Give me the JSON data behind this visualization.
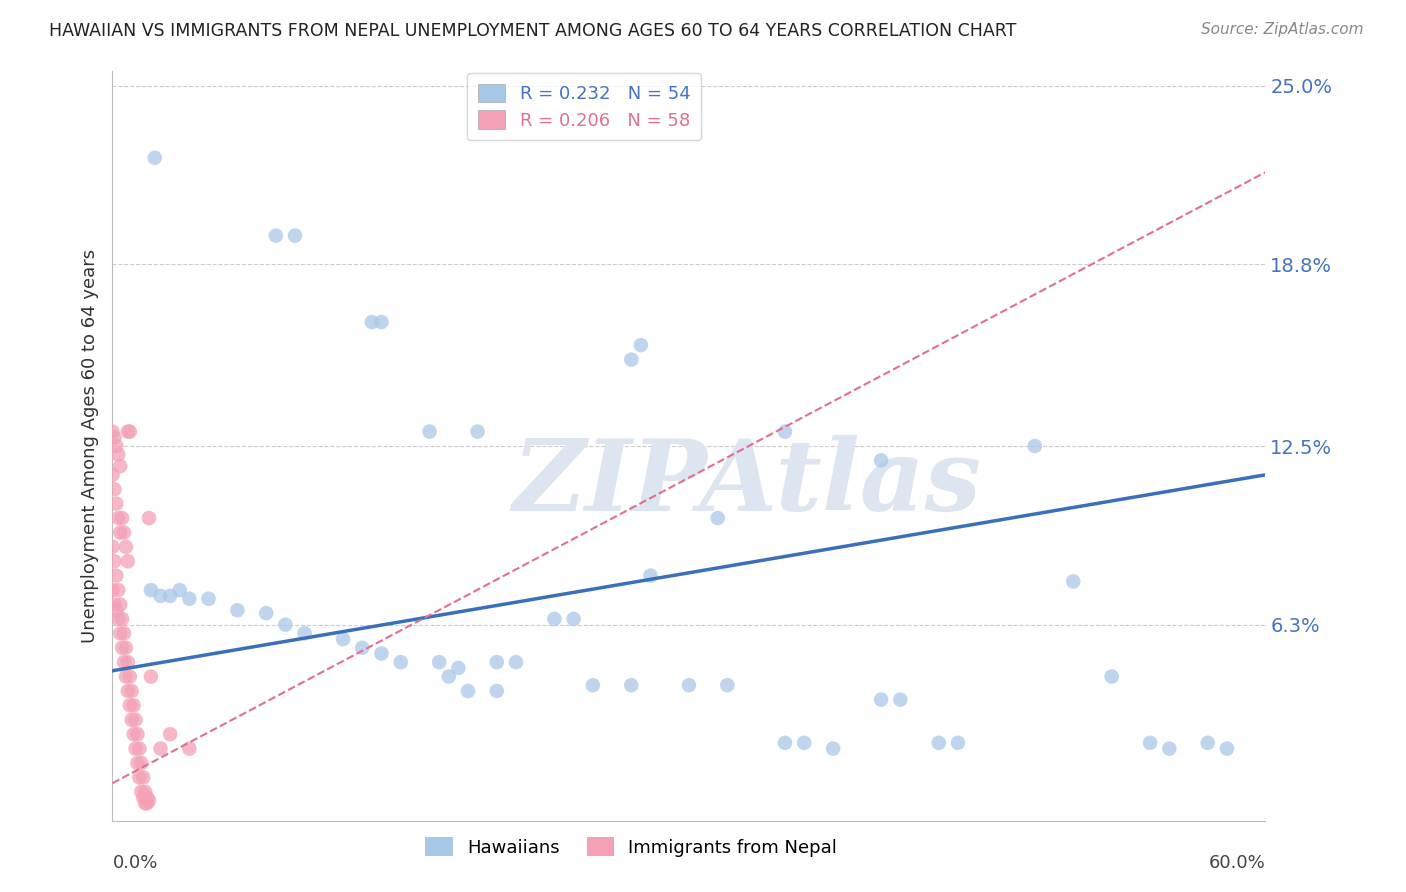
{
  "title": "HAWAIIAN VS IMMIGRANTS FROM NEPAL UNEMPLOYMENT AMONG AGES 60 TO 64 YEARS CORRELATION CHART",
  "source": "Source: ZipAtlas.com",
  "ylabel": "Unemployment Among Ages 60 to 64 years",
  "xlim": [
    0.0,
    0.6
  ],
  "ylim": [
    -0.005,
    0.255
  ],
  "yticks": [
    0.063,
    0.125,
    0.188,
    0.25
  ],
  "ytick_labels": [
    "6.3%",
    "12.5%",
    "18.8%",
    "25.0%"
  ],
  "hawaiians_color": "#a8c8e8",
  "nepal_color": "#f4a0b5",
  "hawaiians_line_color": "#3a6fba",
  "nepal_line_color": "#e07090",
  "watermark": "ZIPAtlas",
  "watermark_color": "#dde5f0",
  "background_color": "#ffffff",
  "grid_color": "#cccccc",
  "hawaiians_trend": [
    0.047,
    0.115
  ],
  "nepal_trend": [
    0.008,
    0.22
  ],
  "hawaiians_data": [
    [
      0.022,
      0.225
    ],
    [
      0.085,
      0.198
    ],
    [
      0.095,
      0.198
    ],
    [
      0.135,
      0.168
    ],
    [
      0.14,
      0.168
    ],
    [
      0.165,
      0.13
    ],
    [
      0.19,
      0.13
    ],
    [
      0.27,
      0.155
    ],
    [
      0.275,
      0.16
    ],
    [
      0.35,
      0.13
    ],
    [
      0.48,
      0.125
    ],
    [
      0.4,
      0.12
    ],
    [
      0.315,
      0.1
    ],
    [
      0.28,
      0.08
    ],
    [
      0.02,
      0.075
    ],
    [
      0.025,
      0.073
    ],
    [
      0.03,
      0.073
    ],
    [
      0.035,
      0.075
    ],
    [
      0.04,
      0.072
    ],
    [
      0.05,
      0.072
    ],
    [
      0.065,
      0.068
    ],
    [
      0.08,
      0.067
    ],
    [
      0.09,
      0.063
    ],
    [
      0.1,
      0.06
    ],
    [
      0.12,
      0.058
    ],
    [
      0.13,
      0.055
    ],
    [
      0.14,
      0.053
    ],
    [
      0.15,
      0.05
    ],
    [
      0.17,
      0.05
    ],
    [
      0.18,
      0.048
    ],
    [
      0.2,
      0.05
    ],
    [
      0.21,
      0.05
    ],
    [
      0.23,
      0.065
    ],
    [
      0.24,
      0.065
    ],
    [
      0.25,
      0.042
    ],
    [
      0.27,
      0.042
    ],
    [
      0.3,
      0.042
    ],
    [
      0.32,
      0.042
    ],
    [
      0.35,
      0.022
    ],
    [
      0.36,
      0.022
    ],
    [
      0.4,
      0.037
    ],
    [
      0.41,
      0.037
    ],
    [
      0.43,
      0.022
    ],
    [
      0.5,
      0.078
    ],
    [
      0.52,
      0.045
    ],
    [
      0.54,
      0.022
    ],
    [
      0.57,
      0.022
    ],
    [
      0.175,
      0.045
    ],
    [
      0.185,
      0.04
    ],
    [
      0.2,
      0.04
    ],
    [
      0.375,
      0.02
    ],
    [
      0.44,
      0.022
    ],
    [
      0.55,
      0.02
    ],
    [
      0.58,
      0.02
    ]
  ],
  "nepal_data": [
    [
      0.0,
      0.115
    ],
    [
      0.001,
      0.11
    ],
    [
      0.002,
      0.105
    ],
    [
      0.003,
      0.1
    ],
    [
      0.004,
      0.095
    ],
    [
      0.0,
      0.09
    ],
    [
      0.001,
      0.085
    ],
    [
      0.002,
      0.08
    ],
    [
      0.003,
      0.075
    ],
    [
      0.004,
      0.07
    ],
    [
      0.005,
      0.065
    ],
    [
      0.006,
      0.06
    ],
    [
      0.007,
      0.055
    ],
    [
      0.008,
      0.05
    ],
    [
      0.009,
      0.045
    ],
    [
      0.01,
      0.04
    ],
    [
      0.011,
      0.035
    ],
    [
      0.012,
      0.03
    ],
    [
      0.013,
      0.025
    ],
    [
      0.014,
      0.02
    ],
    [
      0.015,
      0.015
    ],
    [
      0.016,
      0.01
    ],
    [
      0.017,
      0.005
    ],
    [
      0.018,
      0.003
    ],
    [
      0.019,
      0.002
    ],
    [
      0.0,
      0.13
    ],
    [
      0.001,
      0.128
    ],
    [
      0.002,
      0.125
    ],
    [
      0.003,
      0.122
    ],
    [
      0.004,
      0.118
    ],
    [
      0.005,
      0.1
    ],
    [
      0.006,
      0.095
    ],
    [
      0.007,
      0.09
    ],
    [
      0.008,
      0.085
    ],
    [
      0.0,
      0.075
    ],
    [
      0.001,
      0.07
    ],
    [
      0.002,
      0.068
    ],
    [
      0.003,
      0.065
    ],
    [
      0.004,
      0.06
    ],
    [
      0.005,
      0.055
    ],
    [
      0.006,
      0.05
    ],
    [
      0.007,
      0.045
    ],
    [
      0.008,
      0.04
    ],
    [
      0.009,
      0.035
    ],
    [
      0.01,
      0.03
    ],
    [
      0.011,
      0.025
    ],
    [
      0.012,
      0.02
    ],
    [
      0.013,
      0.015
    ],
    [
      0.014,
      0.01
    ],
    [
      0.015,
      0.005
    ],
    [
      0.016,
      0.003
    ],
    [
      0.017,
      0.001
    ],
    [
      0.018,
      0.001
    ],
    [
      0.02,
      0.045
    ],
    [
      0.025,
      0.02
    ],
    [
      0.03,
      0.025
    ],
    [
      0.04,
      0.02
    ],
    [
      0.008,
      0.13
    ],
    [
      0.009,
      0.13
    ],
    [
      0.019,
      0.1
    ]
  ]
}
